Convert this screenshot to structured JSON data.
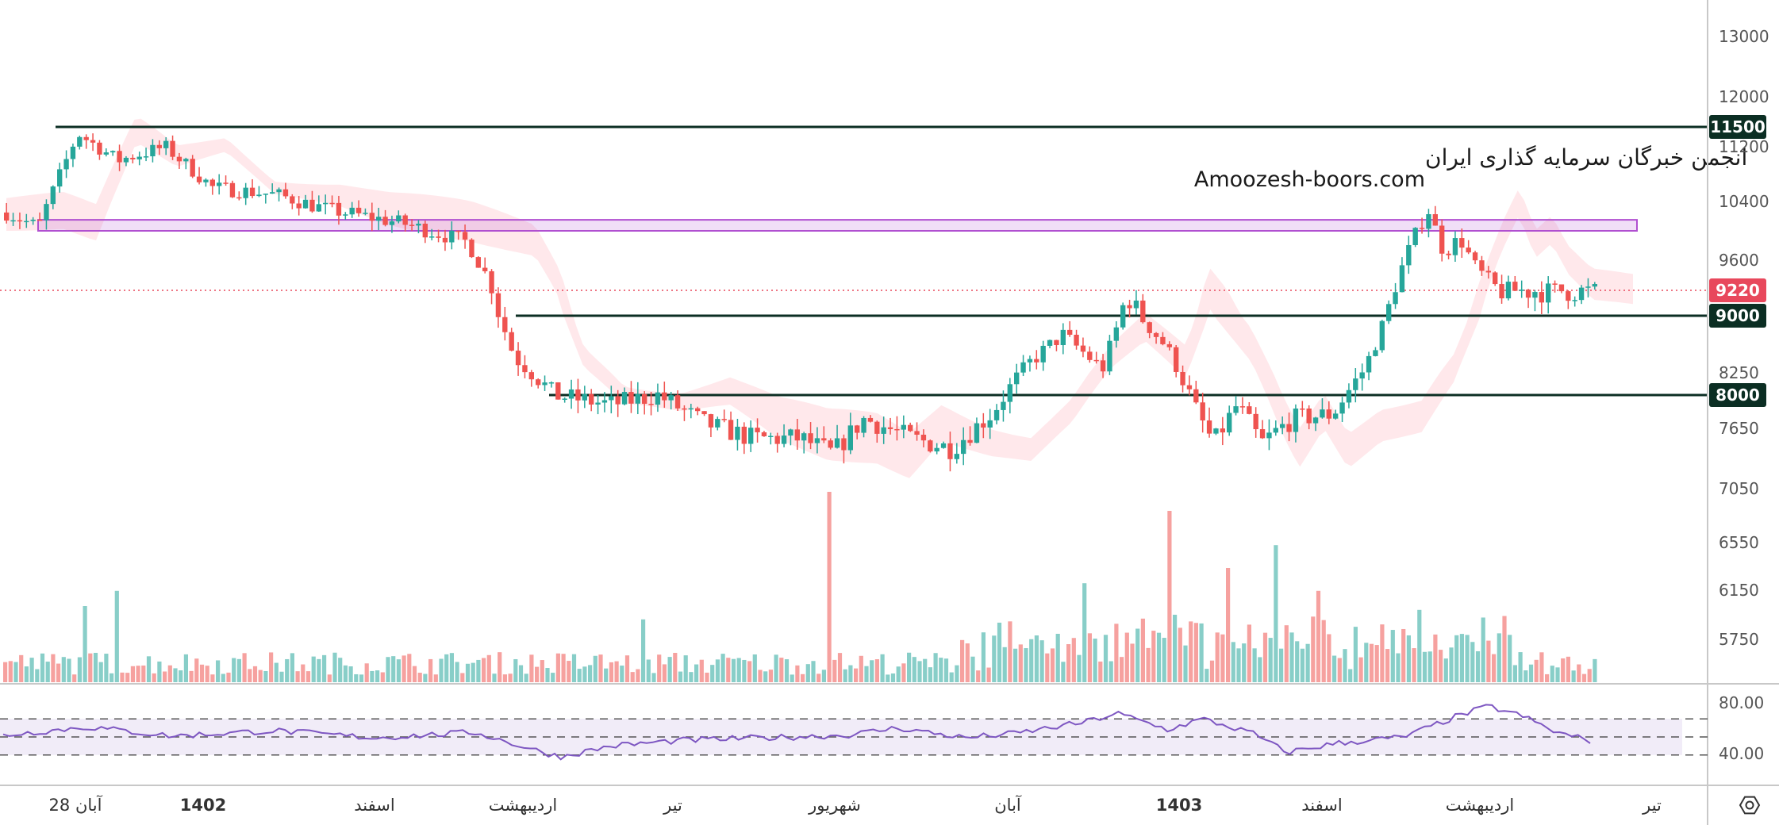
{
  "watermark": {
    "line1": "انجمن خبرگان سرمایه گذاری ایران",
    "line2": "Amoozesh-boors.com"
  },
  "price_axis": {
    "ticks": [
      "13000",
      "12000",
      "11200",
      "10400",
      "9600",
      "8250",
      "7650",
      "7050",
      "6550",
      "6150",
      "5750"
    ]
  },
  "horizontal_levels": [
    {
      "label": "11500",
      "color": "#0b2e23"
    },
    {
      "label": "9000",
      "color": "#0b2e23"
    },
    {
      "label": "8000",
      "color": "#0b2e23"
    }
  ],
  "last_price": {
    "label": "9220",
    "color": "#e8485c"
  },
  "resistance_zone": {
    "low": 10000,
    "high": 10150,
    "color": "#b04fd0"
  },
  "rsi": {
    "ticks": [
      "80.00",
      "40.00"
    ],
    "line_color": "#7e57c2"
  },
  "time_axis": {
    "labels": [
      {
        "text": "28 آبان",
        "bold": false
      },
      {
        "text": "1402",
        "bold": true
      },
      {
        "text": "اسفند",
        "bold": false
      },
      {
        "text": "اردیبهشت",
        "bold": false
      },
      {
        "text": "تیر",
        "bold": false
      },
      {
        "text": "شهریور",
        "bold": false
      },
      {
        "text": "آبان",
        "bold": false
      },
      {
        "text": "1403",
        "bold": true
      },
      {
        "text": "اسفند",
        "bold": false
      },
      {
        "text": "اردیبهشت",
        "bold": false
      },
      {
        "text": "تیر",
        "bold": false
      }
    ]
  },
  "colors": {
    "up": "#26a69a",
    "down": "#ef5350",
    "cloud_up": "#a5d6a7",
    "cloud_down": "#ffcdd2"
  },
  "chart_data": {
    "type": "candlestick",
    "price_points": [
      {
        "t": 0,
        "p": 10250
      },
      {
        "t": 0.02,
        "p": 10050
      },
      {
        "t": 0.045,
        "p": 11400
      },
      {
        "t": 0.07,
        "p": 11000
      },
      {
        "t": 0.1,
        "p": 11200
      },
      {
        "t": 0.13,
        "p": 10600
      },
      {
        "t": 0.17,
        "p": 10500
      },
      {
        "t": 0.2,
        "p": 10300
      },
      {
        "t": 0.25,
        "p": 10100
      },
      {
        "t": 0.29,
        "p": 9850
      },
      {
        "t": 0.305,
        "p": 9300
      },
      {
        "t": 0.32,
        "p": 8450
      },
      {
        "t": 0.345,
        "p": 8000
      },
      {
        "t": 0.38,
        "p": 7900
      },
      {
        "t": 0.41,
        "p": 8000
      },
      {
        "t": 0.44,
        "p": 7700
      },
      {
        "t": 0.47,
        "p": 7550
      },
      {
        "t": 0.5,
        "p": 7550
      },
      {
        "t": 0.52,
        "p": 7400
      },
      {
        "t": 0.54,
        "p": 7750
      },
      {
        "t": 0.57,
        "p": 7550
      },
      {
        "t": 0.595,
        "p": 7450
      },
      {
        "t": 0.62,
        "p": 7800
      },
      {
        "t": 0.645,
        "p": 8400
      },
      {
        "t": 0.665,
        "p": 8750
      },
      {
        "t": 0.69,
        "p": 8300
      },
      {
        "t": 0.705,
        "p": 9200
      },
      {
        "t": 0.73,
        "p": 8600
      },
      {
        "t": 0.75,
        "p": 7800
      },
      {
        "t": 0.76,
        "p": 7500
      },
      {
        "t": 0.775,
        "p": 7900
      },
      {
        "t": 0.79,
        "p": 7500
      },
      {
        "t": 0.81,
        "p": 7750
      },
      {
        "t": 0.835,
        "p": 7800
      },
      {
        "t": 0.855,
        "p": 8300
      },
      {
        "t": 0.872,
        "p": 9150
      },
      {
        "t": 0.885,
        "p": 9850
      },
      {
        "t": 0.895,
        "p": 10300
      },
      {
        "t": 0.905,
        "p": 9700
      },
      {
        "t": 0.915,
        "p": 9900
      },
      {
        "t": 0.925,
        "p": 9500
      },
      {
        "t": 0.935,
        "p": 9300
      },
      {
        "t": 0.94,
        "p": 9220
      }
    ],
    "volume_spikes": [
      {
        "t": 0.52,
        "v": 1.0
      },
      {
        "t": 0.734,
        "v": 0.9
      },
      {
        "t": 0.8,
        "v": 0.72
      },
      {
        "t": 0.77,
        "v": 0.6
      },
      {
        "t": 0.68,
        "v": 0.52
      },
      {
        "t": 0.05,
        "v": 0.4
      },
      {
        "t": 0.07,
        "v": 0.48
      },
      {
        "t": 0.4,
        "v": 0.33
      },
      {
        "t": 0.825,
        "v": 0.48
      },
      {
        "t": 0.89,
        "v": 0.38
      }
    ],
    "rsi_points": [
      {
        "t": 0,
        "r": 52
      },
      {
        "t": 0.05,
        "r": 61
      },
      {
        "t": 0.1,
        "r": 51
      },
      {
        "t": 0.16,
        "r": 57
      },
      {
        "t": 0.22,
        "r": 49
      },
      {
        "t": 0.28,
        "r": 55
      },
      {
        "t": 0.31,
        "r": 38
      },
      {
        "t": 0.33,
        "r": 28
      },
      {
        "t": 0.36,
        "r": 40
      },
      {
        "t": 0.4,
        "r": 46
      },
      {
        "t": 0.45,
        "r": 49
      },
      {
        "t": 0.5,
        "r": 52
      },
      {
        "t": 0.53,
        "r": 60
      },
      {
        "t": 0.57,
        "r": 49
      },
      {
        "t": 0.6,
        "r": 54
      },
      {
        "t": 0.64,
        "r": 66
      },
      {
        "t": 0.66,
        "r": 76
      },
      {
        "t": 0.69,
        "r": 58
      },
      {
        "t": 0.71,
        "r": 70
      },
      {
        "t": 0.74,
        "r": 54
      },
      {
        "t": 0.76,
        "r": 33
      },
      {
        "t": 0.79,
        "r": 43
      },
      {
        "t": 0.83,
        "r": 50
      },
      {
        "t": 0.86,
        "r": 72
      },
      {
        "t": 0.88,
        "r": 84
      },
      {
        "t": 0.9,
        "r": 73
      },
      {
        "t": 0.92,
        "r": 55
      },
      {
        "t": 0.94,
        "r": 46
      }
    ],
    "rsi_range": [
      0,
      100
    ],
    "rsi_bands": [
      70,
      50,
      30
    ]
  }
}
